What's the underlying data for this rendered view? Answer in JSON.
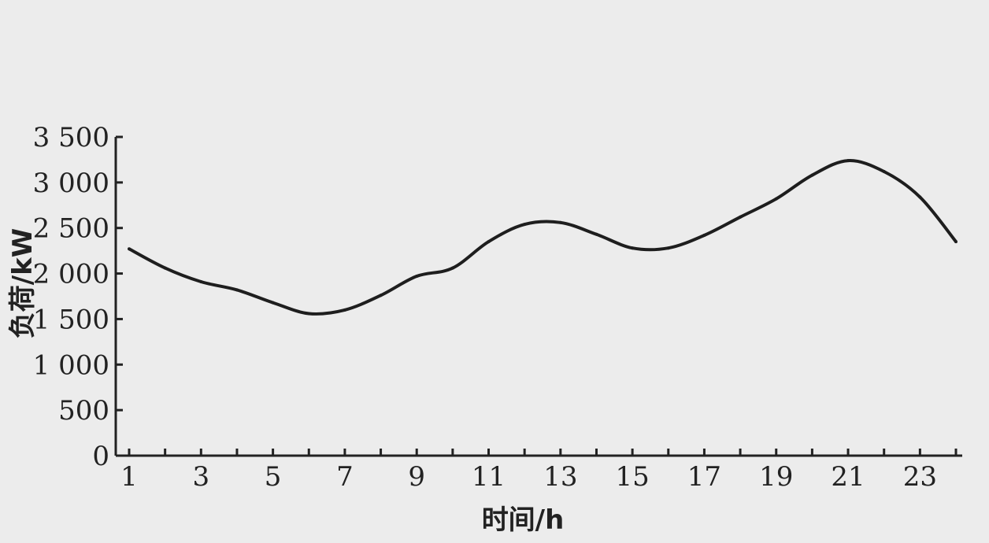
{
  "chart_data": {
    "type": "line",
    "title": "",
    "xlabel": "时间/h",
    "ylabel": "负荷/kW",
    "x_tick_labels": [
      "1",
      "3",
      "5",
      "7",
      "9",
      "11",
      "13",
      "15",
      "17",
      "19",
      "21",
      "23"
    ],
    "y_tick_labels": [
      "0",
      "500",
      "1 000",
      "1 500",
      "2 000",
      "2 500",
      "3 000",
      "3 500"
    ],
    "y_tick_values": [
      0,
      500,
      1000,
      1500,
      2000,
      2500,
      3000,
      3500
    ],
    "xlim": [
      1,
      24
    ],
    "ylim": [
      0,
      3500
    ],
    "grid": false,
    "series": [
      {
        "x": [
          1,
          2,
          3,
          4,
          5,
          6,
          7,
          8,
          9,
          10,
          11,
          12,
          13,
          14,
          15,
          16,
          17,
          18,
          19,
          20,
          21,
          22,
          23,
          24
        ],
        "values": [
          2270,
          2060,
          1910,
          1820,
          1680,
          1560,
          1600,
          1760,
          1970,
          2060,
          2350,
          2540,
          2560,
          2430,
          2280,
          2280,
          2420,
          2620,
          2820,
          3080,
          3240,
          3120,
          2840,
          2350
        ]
      }
    ]
  }
}
